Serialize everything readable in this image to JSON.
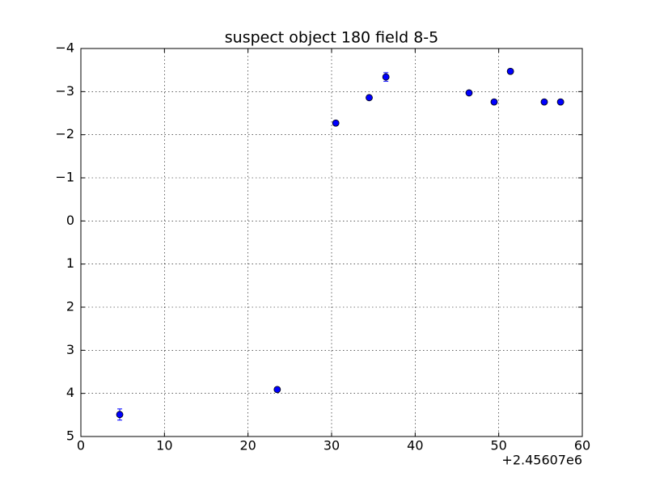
{
  "chart_data": {
    "type": "scatter",
    "title": "suspect object 180 field 8-5",
    "annotation": "+2.45607e6",
    "x": [
      4.65,
      23.5,
      30.5,
      34.5,
      36.5,
      46.45,
      49.45,
      51.4,
      55.45,
      57.4
    ],
    "values": [
      4.49,
      3.91,
      -2.27,
      -2.86,
      -3.34,
      -2.97,
      -2.76,
      -3.47,
      -2.76,
      -2.76
    ],
    "errors": [
      0.13,
      0.04,
      0.04,
      0.04,
      0.1,
      0.04,
      0.04,
      0.04,
      0.04,
      0.04
    ],
    "color": "#0000ff",
    "xlim": [
      0,
      60
    ],
    "xticks": [
      0,
      10,
      20,
      30,
      40,
      50,
      60
    ],
    "ylim": [
      5,
      -4
    ],
    "yticks": [
      {
        "value": -4,
        "label": "−4"
      },
      {
        "value": -3,
        "label": "−3"
      },
      {
        "value": -2,
        "label": "−2"
      },
      {
        "value": -1,
        "label": "−1"
      },
      0,
      1,
      2,
      3,
      4,
      5
    ],
    "grid": true
  }
}
